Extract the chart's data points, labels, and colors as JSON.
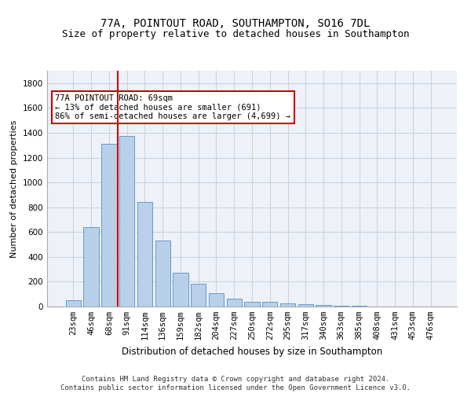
{
  "title1": "77A, POINTOUT ROAD, SOUTHAMPTON, SO16 7DL",
  "title2": "Size of property relative to detached houses in Southampton",
  "xlabel": "Distribution of detached houses by size in Southampton",
  "ylabel": "Number of detached properties",
  "categories": [
    "23sqm",
    "46sqm",
    "68sqm",
    "91sqm",
    "114sqm",
    "136sqm",
    "159sqm",
    "182sqm",
    "204sqm",
    "227sqm",
    "250sqm",
    "272sqm",
    "295sqm",
    "317sqm",
    "340sqm",
    "363sqm",
    "385sqm",
    "408sqm",
    "431sqm",
    "453sqm",
    "476sqm"
  ],
  "values": [
    50,
    640,
    1310,
    1375,
    845,
    530,
    275,
    185,
    105,
    65,
    38,
    35,
    28,
    18,
    12,
    8,
    5,
    3,
    2,
    1,
    1
  ],
  "bar_color": "#b8d0ea",
  "bar_edge_color": "#6699cc",
  "vline_x_index": 2.5,
  "vline_color": "#cc0000",
  "annotation_text": "77A POINTOUT ROAD: 69sqm\n← 13% of detached houses are smaller (691)\n86% of semi-detached houses are larger (4,699) →",
  "annotation_box_color": "#ffffff",
  "annotation_box_edge": "#cc0000",
  "ylim": [
    0,
    1900
  ],
  "yticks": [
    0,
    200,
    400,
    600,
    800,
    1000,
    1200,
    1400,
    1600,
    1800
  ],
  "footnote": "Contains HM Land Registry data © Crown copyright and database right 2024.\nContains public sector information licensed under the Open Government Licence v3.0.",
  "bg_color": "#eef2f8",
  "grid_color": "#c8d4e4",
  "title1_fontsize": 10,
  "title2_fontsize": 9,
  "xlabel_fontsize": 8.5,
  "ylabel_fontsize": 8,
  "tick_fontsize": 7.5,
  "footnote_fontsize": 6.5
}
